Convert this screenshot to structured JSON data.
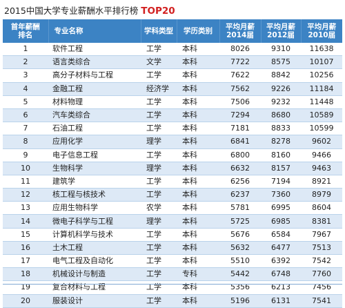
{
  "title": {
    "main": "2015中国大学专业薪酬水平排行榜",
    "highlight": "TOP20"
  },
  "table": {
    "headers": {
      "rank": "首年薪酬排名",
      "major": "专业名称",
      "category": "学科类型",
      "degree": "学历类别",
      "salary_2014": "平均月薪2014届",
      "salary_2012": "平均月薪2012届",
      "salary_2010": "平均月薪2010届"
    },
    "rows": [
      {
        "rank": "1",
        "major": "软件工程",
        "category": "工学",
        "degree": "本科",
        "s2014": "8026",
        "s2012": "9310",
        "s2010": "11638"
      },
      {
        "rank": "2",
        "major": "语言类综合",
        "category": "文学",
        "degree": "本科",
        "s2014": "7722",
        "s2012": "8575",
        "s2010": "10107"
      },
      {
        "rank": "3",
        "major": "高分子材料与工程",
        "category": "工学",
        "degree": "本科",
        "s2014": "7622",
        "s2012": "8842",
        "s2010": "10256"
      },
      {
        "rank": "4",
        "major": "金融工程",
        "category": "经济学",
        "degree": "本科",
        "s2014": "7562",
        "s2012": "9226",
        "s2010": "11184"
      },
      {
        "rank": "5",
        "major": "材料物理",
        "category": "工学",
        "degree": "本科",
        "s2014": "7506",
        "s2012": "9232",
        "s2010": "11448"
      },
      {
        "rank": "6",
        "major": "汽车类综合",
        "category": "工学",
        "degree": "本科",
        "s2014": "7294",
        "s2012": "8680",
        "s2010": "10589"
      },
      {
        "rank": "7",
        "major": "石油工程",
        "category": "工学",
        "degree": "本科",
        "s2014": "7181",
        "s2012": "8833",
        "s2010": "10599"
      },
      {
        "rank": "8",
        "major": "应用化学",
        "category": "理学",
        "degree": "本科",
        "s2014": "6841",
        "s2012": "8278",
        "s2010": "9602"
      },
      {
        "rank": "9",
        "major": "电子信息工程",
        "category": "工学",
        "degree": "本科",
        "s2014": "6800",
        "s2012": "8160",
        "s2010": "9466"
      },
      {
        "rank": "10",
        "major": "生物科学",
        "category": "理学",
        "degree": "本科",
        "s2014": "6632",
        "s2012": "8157",
        "s2010": "9463"
      },
      {
        "rank": "11",
        "major": "建筑学",
        "category": "工学",
        "degree": "本科",
        "s2014": "6256",
        "s2012": "7194",
        "s2010": "8921"
      },
      {
        "rank": "12",
        "major": "核工程与核技术",
        "category": "工学",
        "degree": "本科",
        "s2014": "6237",
        "s2012": "7360",
        "s2010": "8979"
      },
      {
        "rank": "13",
        "major": "应用生物科学",
        "category": "农学",
        "degree": "本科",
        "s2014": "5781",
        "s2012": "6995",
        "s2010": "8604"
      },
      {
        "rank": "14",
        "major": "微电子科学与工程",
        "category": "理学",
        "degree": "本科",
        "s2014": "5725",
        "s2012": "6985",
        "s2010": "8381"
      },
      {
        "rank": "15",
        "major": "计算机科学与技术",
        "category": "工学",
        "degree": "本科",
        "s2014": "5676",
        "s2012": "6584",
        "s2010": "7967"
      },
      {
        "rank": "16",
        "major": "土木工程",
        "category": "工学",
        "degree": "本科",
        "s2014": "5632",
        "s2012": "6477",
        "s2010": "7513"
      },
      {
        "rank": "17",
        "major": "电气工程及自动化",
        "category": "工学",
        "degree": "本科",
        "s2014": "5510",
        "s2012": "6392",
        "s2010": "7542"
      },
      {
        "rank": "18",
        "major": "机械设计与制造",
        "category": "工学",
        "degree": "专科",
        "s2014": "5442",
        "s2012": "6748",
        "s2010": "7760"
      },
      {
        "rank": "19",
        "major": "复合材料与工程",
        "category": "工学",
        "degree": "本科",
        "s2014": "5356",
        "s2012": "6213",
        "s2010": "7456"
      },
      {
        "rank": "20",
        "major": "服装设计",
        "category": "工学",
        "degree": "本科",
        "s2014": "5196",
        "s2012": "6131",
        "s2010": "7541"
      }
    ]
  }
}
